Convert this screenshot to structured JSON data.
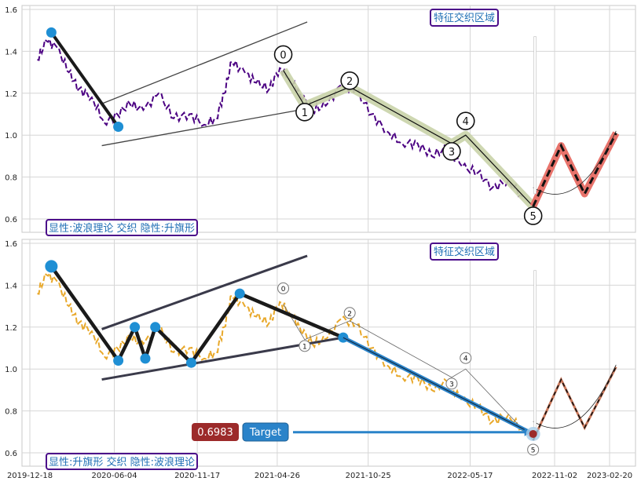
{
  "chart_data": [
    {
      "type": "line",
      "title": "",
      "xlabel": "",
      "ylabel": "",
      "ylim": [
        0.54,
        1.62
      ],
      "y_ticks": [
        "0.6",
        "0.8",
        "1.0",
        "1.2",
        "1.4",
        "1.6"
      ],
      "x_ticks": [
        "2019-12-18",
        "2020-06-04",
        "2020-11-17",
        "2021-04-26",
        "2021-10-25",
        "2022-05-17",
        "2022-11-02",
        "2023-02-20"
      ],
      "grid": true,
      "price_series": {
        "color": "#4b0082",
        "style": "dashed",
        "x": [
          "2020-01-02",
          "2020-01-20",
          "2020-02-10",
          "2020-03-05",
          "2020-03-25",
          "2020-04-20",
          "2020-05-15",
          "2020-06-10",
          "2020-07-05",
          "2020-08-01",
          "2020-09-01",
          "2020-10-01",
          "2020-11-01",
          "2020-12-01",
          "2020-12-25",
          "2021-01-10",
          "2021-01-25",
          "2021-02-20",
          "2021-03-15",
          "2021-04-10",
          "2021-05-01",
          "2021-05-20",
          "2021-06-10",
          "2021-07-05",
          "2021-08-01",
          "2021-09-01",
          "2021-10-01",
          "2021-11-01",
          "2021-12-01",
          "2022-01-01",
          "2022-02-01",
          "2022-03-01",
          "2022-04-01",
          "2022-05-01",
          "2022-06-01",
          "2022-07-01",
          "2022-08-01",
          "2022-09-01"
        ],
        "y": [
          1.36,
          1.45,
          1.42,
          1.3,
          1.22,
          1.18,
          1.06,
          1.1,
          1.15,
          1.12,
          1.2,
          1.08,
          1.1,
          1.05,
          1.08,
          1.2,
          1.35,
          1.3,
          1.25,
          1.22,
          1.32,
          1.27,
          1.2,
          1.12,
          1.14,
          1.24,
          1.21,
          1.1,
          1.02,
          0.96,
          0.96,
          0.9,
          0.94,
          0.85,
          0.82,
          0.75,
          0.78,
          0.7
        ]
      },
      "wave_points": [
        {
          "label": "0",
          "x": "2021-05-08",
          "y": 1.31
        },
        {
          "label": "1",
          "x": "2021-06-20",
          "y": 1.14
        },
        {
          "label": "2",
          "x": "2021-09-18",
          "y": 1.23
        },
        {
          "label": "3",
          "x": "2022-04-10",
          "y": 0.96
        },
        {
          "label": "4",
          "x": "2022-05-08",
          "y": 1.0
        },
        {
          "label": "5",
          "x": "2022-09-20",
          "y": 0.66
        }
      ],
      "projection": [
        {
          "x": "2022-09-20",
          "y": 0.66
        },
        {
          "x": "2022-11-15",
          "y": 0.95
        },
        {
          "x": "2023-01-01",
          "y": 0.72
        },
        {
          "x": "2023-03-05",
          "y": 1.01
        }
      ],
      "flag_poles": [
        {
          "x": "2020-01-30",
          "y": 1.49
        },
        {
          "x": "2020-06-12",
          "y": 1.04
        }
      ],
      "channel_upper": [
        {
          "x": "2020-05-10",
          "y": 1.15
        },
        {
          "x": "2021-06-25",
          "y": 1.54
        }
      ],
      "channel_lower": [
        {
          "x": "2020-05-10",
          "y": 0.95
        },
        {
          "x": "2021-06-10",
          "y": 1.12
        }
      ],
      "annotations": {
        "box_top": "特征交织区域",
        "box_bottom": "显性:波浪理论 交织 隐性:升旗形"
      }
    },
    {
      "type": "line",
      "title": "",
      "xlabel": "",
      "ylabel": "",
      "ylim": [
        0.54,
        1.62
      ],
      "y_ticks": [
        "0.6",
        "0.8",
        "1.0",
        "1.2",
        "1.4",
        "1.6"
      ],
      "x_ticks": [
        "2019-12-18",
        "2020-06-04",
        "2020-11-17",
        "2021-04-26",
        "2021-10-25",
        "2022-05-17",
        "2022-11-02",
        "2023-02-20"
      ],
      "grid": true,
      "price_series": {
        "color": "#e8a82a",
        "style": "dashed"
      },
      "flag_points": [
        {
          "x": "2020-01-30",
          "y": 1.49
        },
        {
          "x": "2020-06-12",
          "y": 1.04
        },
        {
          "x": "2020-07-15",
          "y": 1.2
        },
        {
          "x": "2020-08-05",
          "y": 1.05
        },
        {
          "x": "2020-08-25",
          "y": 1.2
        },
        {
          "x": "2020-11-05",
          "y": 1.03
        },
        {
          "x": "2021-02-10",
          "y": 1.36
        },
        {
          "x": "2021-09-05",
          "y": 1.15
        }
      ],
      "target_arrow": {
        "from": {
          "x": "2021-09-05",
          "y": 1.15
        },
        "to": {
          "x": "2022-09-20",
          "y": 0.69
        }
      },
      "channel_upper": [
        {
          "x": "2020-05-10",
          "y": 1.19
        },
        {
          "x": "2021-06-25",
          "y": 1.54
        }
      ],
      "channel_lower": [
        {
          "x": "2020-05-10",
          "y": 0.95
        },
        {
          "x": "2021-09-05",
          "y": 1.15
        }
      ],
      "target_value": "0.6983",
      "target_label": "Target",
      "wave_labels": [
        "0",
        "1",
        "2",
        "3",
        "4",
        "5"
      ],
      "annotations": {
        "box_top": "特征交织区域",
        "box_bottom": "显性:升旗形 交织 隐性:波浪理论"
      }
    }
  ],
  "colors": {
    "box_border": "#4b0d8a",
    "box_text": "#1f6fb5",
    "flag_line": "#1a1a1a",
    "wave_fill": "#c9d3a8",
    "projection_red": "#e8736b",
    "projection_brown": "#c9775a",
    "target_red": "#9c2a2a",
    "target_blue": "#2a83c9",
    "marker_blue": "#1f8fd4",
    "channel": "#3a3a4a"
  }
}
